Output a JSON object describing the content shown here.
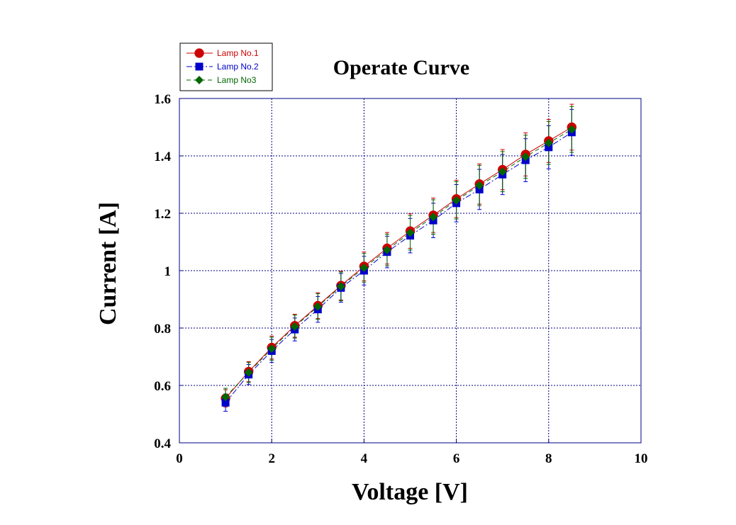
{
  "chart_data": {
    "type": "line",
    "title": "Operate Curve",
    "xlabel": "Voltage [V]",
    "ylabel": "Current [A]",
    "xlim": [
      0,
      10
    ],
    "ylim": [
      0.4,
      1.6
    ],
    "xticks": [
      0,
      2,
      4,
      6,
      8,
      10
    ],
    "yticks": [
      0.4,
      0.6,
      0.8,
      1,
      1.2,
      1.4,
      1.6
    ],
    "xtick_labels": [
      "0",
      "2",
      "4",
      "6",
      "8",
      "10"
    ],
    "ytick_labels": [
      "0.4",
      "0.6",
      "0.8",
      "1",
      "1.2",
      "1.4",
      "1.6"
    ],
    "grid": true,
    "legend_position": "top-left",
    "x": [
      1,
      1.5,
      2,
      2.5,
      3,
      3.5,
      4,
      4.5,
      5,
      5.5,
      6,
      6.5,
      7,
      7.5,
      8,
      8.5
    ],
    "series": [
      {
        "name": "Lamp No.1",
        "color": "#cc0000",
        "marker": "circle",
        "line": "solid",
        "values": [
          0.555,
          0.648,
          0.732,
          0.808,
          0.878,
          0.948,
          1.015,
          1.078,
          1.138,
          1.193,
          1.25,
          1.302,
          1.352,
          1.405,
          1.452,
          1.5
        ],
        "error": [
          0.03,
          0.035,
          0.04,
          0.04,
          0.045,
          0.05,
          0.05,
          0.055,
          0.06,
          0.06,
          0.065,
          0.07,
          0.07,
          0.075,
          0.075,
          0.08
        ]
      },
      {
        "name": "Lamp No.2",
        "color": "#0000cc",
        "marker": "square",
        "line": "dashdot",
        "values": [
          0.54,
          0.638,
          0.72,
          0.795,
          0.865,
          0.94,
          1.0,
          1.065,
          1.122,
          1.175,
          1.235,
          1.283,
          1.335,
          1.385,
          1.43,
          1.482
        ],
        "error": [
          0.03,
          0.035,
          0.04,
          0.04,
          0.045,
          0.05,
          0.05,
          0.055,
          0.06,
          0.06,
          0.065,
          0.07,
          0.07,
          0.075,
          0.075,
          0.08
        ]
      },
      {
        "name": "Lamp No3",
        "color": "#006600",
        "marker": "diamond",
        "line": "dashed",
        "values": [
          0.56,
          0.645,
          0.728,
          0.805,
          0.875,
          0.945,
          1.01,
          1.072,
          1.132,
          1.187,
          1.245,
          1.297,
          1.345,
          1.397,
          1.445,
          1.492
        ],
        "error": [
          0.03,
          0.035,
          0.04,
          0.04,
          0.045,
          0.05,
          0.05,
          0.055,
          0.06,
          0.06,
          0.065,
          0.07,
          0.07,
          0.075,
          0.075,
          0.08
        ]
      }
    ]
  }
}
